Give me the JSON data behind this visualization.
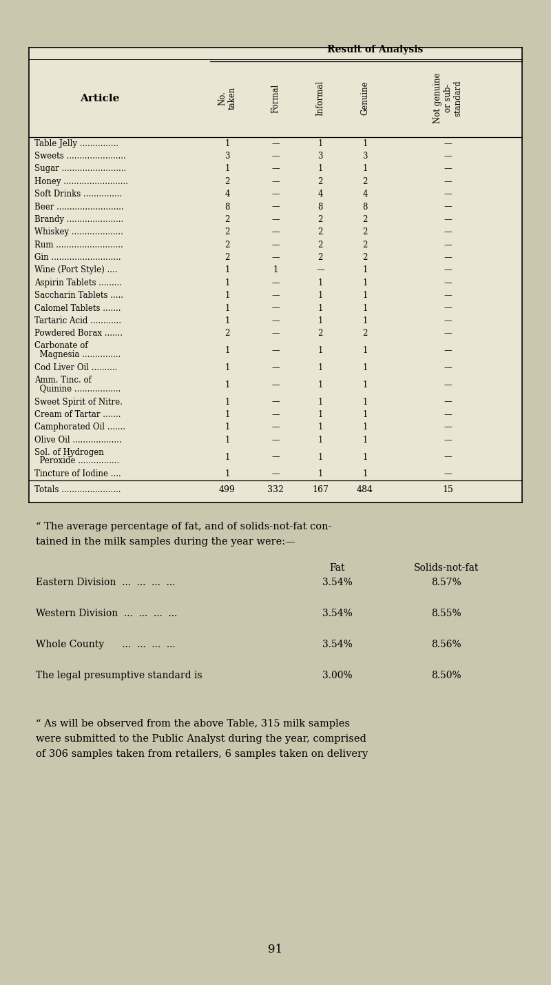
{
  "page_bg": "#cbc6ae",
  "table_bg": "#eae6d4",
  "table_rows": [
    {
      "article": "Table Jelly ...............",
      "no_taken": "1",
      "formal": "—",
      "informal": "1",
      "genuine": "1",
      "not_genuine": "—"
    },
    {
      "article": "Sweets .......................",
      "no_taken": "3",
      "formal": "—",
      "informal": "3",
      "genuine": "3",
      "not_genuine": "—"
    },
    {
      "article": "Sugar .........................",
      "no_taken": "1",
      "formal": "—",
      "informal": "1",
      "genuine": "1",
      "not_genuine": "—"
    },
    {
      "article": "Honey .........................",
      "no_taken": "2",
      "formal": "—",
      "informal": "2",
      "genuine": "2",
      "not_genuine": "—"
    },
    {
      "article": "Soft Drinks ...............",
      "no_taken": "4",
      "formal": "—",
      "informal": "4",
      "genuine": "4",
      "not_genuine": "—"
    },
    {
      "article": "Beer ..........................",
      "no_taken": "8",
      "formal": "—",
      "informal": "8",
      "genuine": "8",
      "not_genuine": "—"
    },
    {
      "article": "Brandy ......................",
      "no_taken": "2",
      "formal": "—",
      "informal": "2",
      "genuine": "2",
      "not_genuine": "—"
    },
    {
      "article": "Whiskey ....................",
      "no_taken": "2",
      "formal": "—",
      "informal": "2",
      "genuine": "2",
      "not_genuine": "—"
    },
    {
      "article": "Rum ..........................",
      "no_taken": "2",
      "formal": "—",
      "informal": "2",
      "genuine": "2",
      "not_genuine": "—"
    },
    {
      "article": "Gin ...........................",
      "no_taken": "2",
      "formal": "—",
      "informal": "2",
      "genuine": "2",
      "not_genuine": "—"
    },
    {
      "article": "Wine (Port Style) ....",
      "no_taken": "1",
      "formal": "1",
      "informal": "—",
      "genuine": "1",
      "not_genuine": "—"
    },
    {
      "article": "Aspirin Tablets .........",
      "no_taken": "1",
      "formal": "—",
      "informal": "1",
      "genuine": "1",
      "not_genuine": "—"
    },
    {
      "article": "Saccharin Tablets .....",
      "no_taken": "1",
      "formal": "—",
      "informal": "1",
      "genuine": "1",
      "not_genuine": "—"
    },
    {
      "article": "Calomel Tablets .......",
      "no_taken": "1",
      "formal": "—",
      "informal": "1",
      "genuine": "1",
      "not_genuine": "—"
    },
    {
      "article": "Tartaric Acid ............",
      "no_taken": "1",
      "formal": "—",
      "informal": "1",
      "genuine": "1",
      "not_genuine": "—"
    },
    {
      "article": "Powdered Borax .......",
      "no_taken": "2",
      "formal": "—",
      "informal": "2",
      "genuine": "2",
      "not_genuine": "—"
    },
    {
      "article": "Carbonate of",
      "article2": "  Magnesia ...............",
      "no_taken": "1",
      "formal": "—",
      "informal": "1",
      "genuine": "1",
      "not_genuine": "—"
    },
    {
      "article": "Cod Liver Oil ..........",
      "article2": null,
      "no_taken": "1",
      "formal": "—",
      "informal": "1",
      "genuine": "1",
      "not_genuine": "—"
    },
    {
      "article": "Amm. Tinc. of",
      "article2": "  Quinine ..................",
      "no_taken": "1",
      "formal": "—",
      "informal": "1",
      "genuine": "1",
      "not_genuine": "—"
    },
    {
      "article": "Sweet Spirit of Nitre.",
      "article2": null,
      "no_taken": "1",
      "formal": "—",
      "informal": "1",
      "genuine": "1",
      "not_genuine": "—"
    },
    {
      "article": "Cream of Tartar .......",
      "article2": null,
      "no_taken": "1",
      "formal": "—",
      "informal": "1",
      "genuine": "1",
      "not_genuine": "—"
    },
    {
      "article": "Camphorated Oil .......",
      "article2": null,
      "no_taken": "1",
      "formal": "—",
      "informal": "1",
      "genuine": "1",
      "not_genuine": "—"
    },
    {
      "article": "Olive Oil ...................",
      "article2": null,
      "no_taken": "1",
      "formal": "—",
      "informal": "1",
      "genuine": "1",
      "not_genuine": "—"
    },
    {
      "article": "Sol. of Hydrogen",
      "article2": "  Peroxide ................",
      "no_taken": "1",
      "formal": "—",
      "informal": "1",
      "genuine": "1",
      "not_genuine": "—"
    },
    {
      "article": "Tincture of Iodine ....",
      "article2": null,
      "no_taken": "1",
      "formal": "—",
      "informal": "1",
      "genuine": "1",
      "not_genuine": "—"
    }
  ],
  "totals": {
    "label": "Totals .......................",
    "no_taken": "499",
    "formal": "332",
    "informal": "167",
    "genuine": "484",
    "not_genuine": "15"
  },
  "col_headers": [
    "No.\ntaken",
    "Formal",
    "Informal",
    "Genuine",
    "Not genuine\nor sub-\nstandard"
  ],
  "result_of_analysis_header": "Result of Analysis",
  "article_header": "Article",
  "paragraph1_line1": "“ The average percentage of fat, and of solids-not-fat con-",
  "paragraph1_line2": "tained in the milk samples during the year were:—",
  "fat_header": "Fat",
  "snf_header": "Solids-not-fat",
  "stats": [
    {
      "label": "Eastern Division  ...  ...  ...  ...",
      "fat": "3.54%",
      "snf": "8.57%"
    },
    {
      "label": "Western Division  ...  ...  ...  ...",
      "fat": "3.54%",
      "snf": "8.55%"
    },
    {
      "label": "Whole County      ...  ...  ...  ...",
      "fat": "3.54%",
      "snf": "8.56%"
    },
    {
      "label": "The legal presumptive standard is",
      "fat": "3.00%",
      "snf": "8.50%"
    }
  ],
  "paragraph2_line1": "“ As will be observed from the above Table, 315 milk samples",
  "paragraph2_line2": "were submitted to the Public Analyst during the year, comprised",
  "paragraph2_line3": "of 306 samples taken from retailers, 6 samples taken on delivery",
  "page_number": "91"
}
